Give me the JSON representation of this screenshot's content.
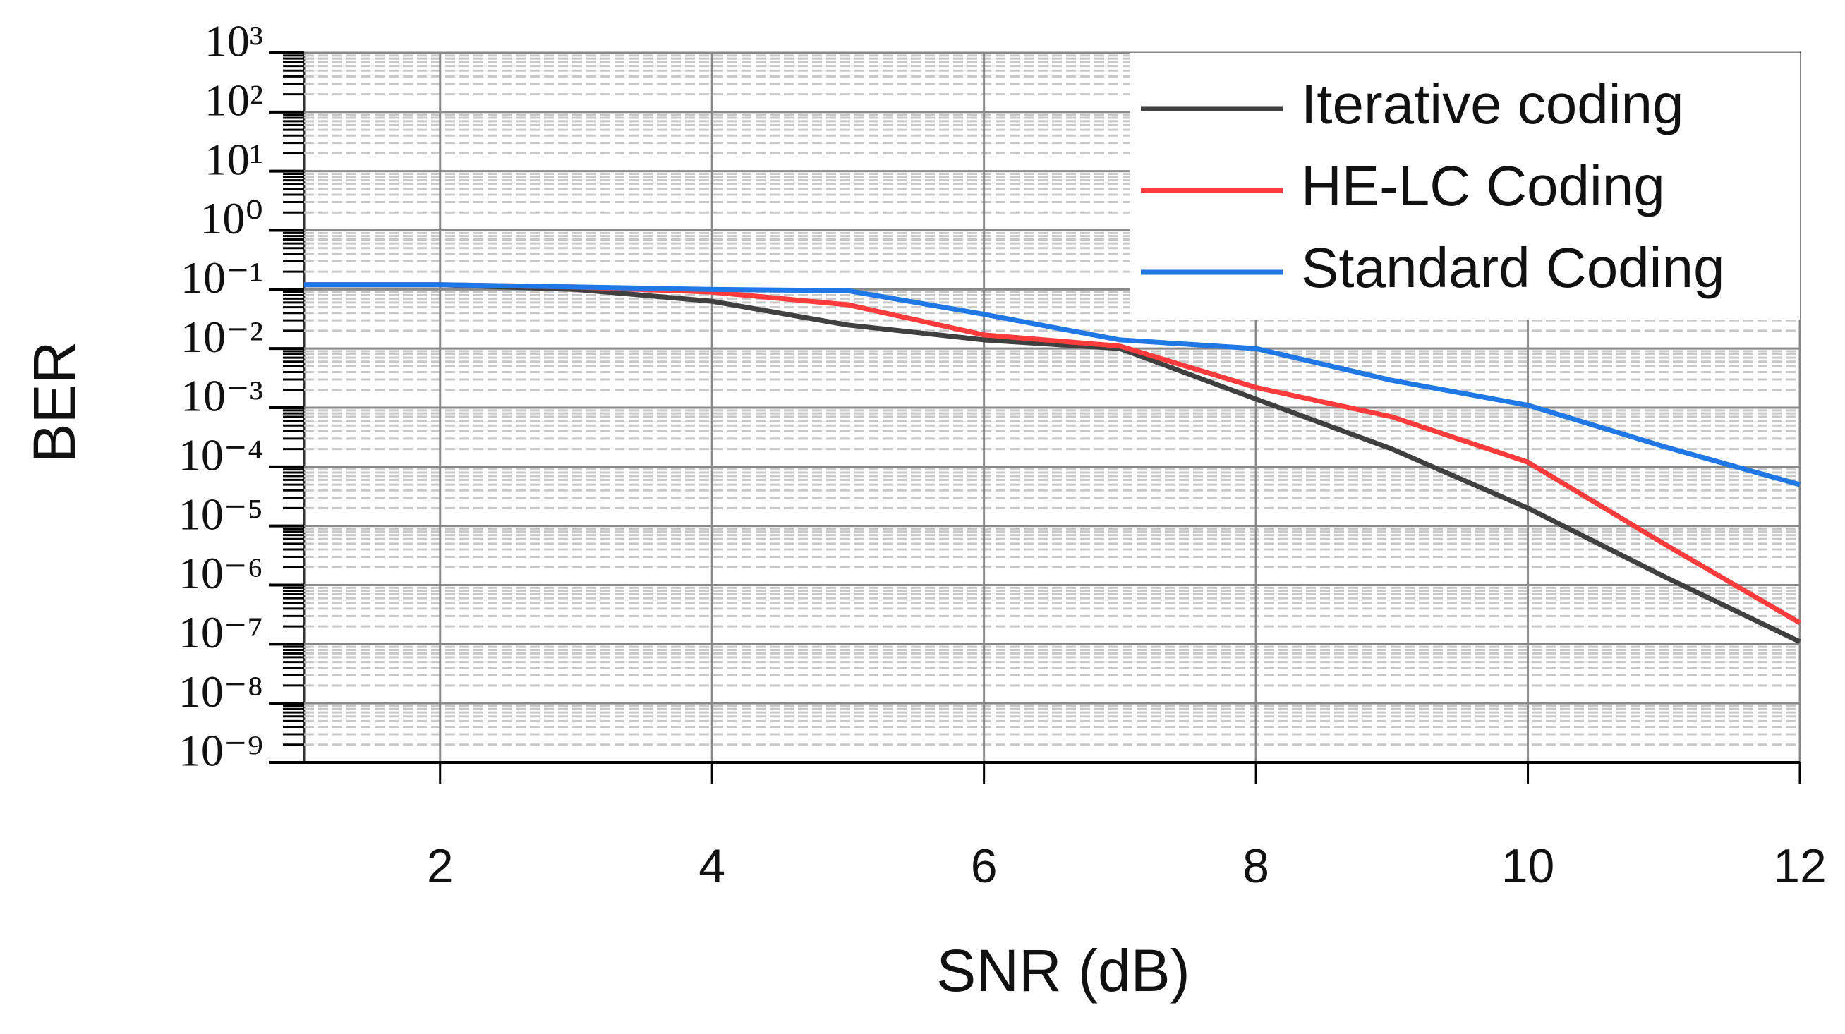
{
  "chart_data": {
    "type": "line",
    "x_label": "SNR (dB)",
    "y_label": "BER",
    "x": [
      1,
      2,
      3,
      4,
      5,
      6,
      7,
      8,
      9,
      10,
      11,
      12
    ],
    "series": [
      {
        "name": "Iterative coding",
        "color": "#404040",
        "values": [
          0.12,
          0.12,
          0.1,
          0.063,
          0.025,
          0.014,
          0.01,
          0.0014,
          0.0002,
          2e-05,
          1.4e-06,
          1.1e-07
        ]
      },
      {
        "name": "HE-LC Coding",
        "color": "#ff3b3b",
        "values": [
          0.12,
          0.12,
          0.11,
          0.09,
          0.055,
          0.017,
          0.011,
          0.0022,
          0.0007,
          0.00012,
          5e-06,
          2.3e-07
        ]
      },
      {
        "name": "Standard Coding",
        "color": "#1f78e6",
        "values": [
          0.12,
          0.12,
          0.11,
          0.1,
          0.095,
          0.038,
          0.014,
          0.01,
          0.0029,
          0.0011,
          0.00022,
          5e-05
        ]
      }
    ],
    "xlim": [
      1,
      12
    ],
    "xticks": [
      2,
      4,
      6,
      8,
      10,
      12
    ],
    "ylim": [
      1e-09,
      1000
    ],
    "log_y": true,
    "yticks": [
      {
        "value": 1000,
        "label": "10³"
      },
      {
        "value": 100,
        "label": "10²"
      },
      {
        "value": 10,
        "label": "10¹"
      },
      {
        "value": 1,
        "label": "10⁰"
      },
      {
        "value": 0.1,
        "label": "10⁻¹"
      },
      {
        "value": 0.01,
        "label": "10⁻²"
      },
      {
        "value": 0.001,
        "label": "10⁻³"
      },
      {
        "value": 0.0001,
        "label": "10⁻⁴"
      },
      {
        "value": 1e-05,
        "label": "10⁻⁵"
      },
      {
        "value": 1e-06,
        "label": "10⁻⁶"
      },
      {
        "value": 1e-07,
        "label": "10⁻⁷"
      },
      {
        "value": 1e-08,
        "label": "10⁻⁸"
      },
      {
        "value": 1e-09,
        "label": "10⁻⁹"
      }
    ],
    "grid": true,
    "legend": "upper right"
  }
}
